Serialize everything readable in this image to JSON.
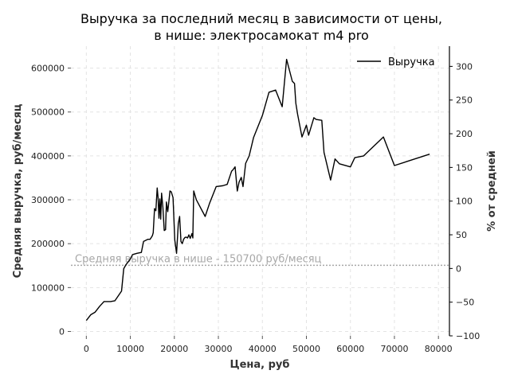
{
  "chart_data": {
    "type": "line",
    "title_line1": "Выручка за последний месяц в зависимости от цены,",
    "title_line2": "в нише: электросамокат m4 pro",
    "xlabel": "Цена, руб",
    "ylabel": "Средняя выручка, руб/месяц",
    "ylabel_right": "% от средней",
    "xlim": [
      -3500,
      82500
    ],
    "ylim": [
      -10000,
      650000
    ],
    "ylim_right": [
      -100,
      330
    ],
    "grid": true,
    "legend_position": "top-right",
    "x_ticks": [
      0,
      10000,
      20000,
      30000,
      40000,
      50000,
      60000,
      70000,
      80000
    ],
    "x_tick_labels": [
      "0",
      "10000",
      "20000",
      "30000",
      "40000",
      "50000",
      "60000",
      "70000",
      "80000"
    ],
    "y_ticks": [
      0,
      100000,
      200000,
      300000,
      400000,
      500000,
      600000
    ],
    "y_tick_labels": [
      "0",
      "100000",
      "200000",
      "300000",
      "400000",
      "500000",
      "600000"
    ],
    "y_right_ticks": [
      -100,
      -50,
      0,
      50,
      100,
      150,
      200,
      250,
      300
    ],
    "y_right_tick_labels": [
      "−100",
      "−50",
      "0",
      "50",
      "100",
      "150",
      "200",
      "250",
      "300"
    ],
    "reference_line": {
      "value": 150700,
      "label": "Средняя выручка в нише - 150700 руб/месяц",
      "color": "#a8a8a8"
    },
    "series": [
      {
        "name": "Выручка",
        "color": "#000000",
        "x": [
          0,
          1000,
          2000,
          3000,
          4000,
          5500,
          6500,
          8000,
          8500,
          9000,
          10000,
          10500,
          11500,
          12500,
          13000,
          14000,
          14500,
          15000,
          15200,
          15500,
          15800,
          16100,
          16300,
          16500,
          16700,
          16900,
          17100,
          17400,
          17700,
          18000,
          18200,
          18500,
          18800,
          19000,
          19300,
          19700,
          20100,
          20500,
          20900,
          21200,
          21500,
          21800,
          22100,
          22400,
          22700,
          23000,
          23300,
          23600,
          24000,
          24200,
          24400,
          24700,
          25000,
          27000,
          28000,
          29500,
          31000,
          32000,
          33000,
          33300,
          33800,
          34300,
          34700,
          35200,
          35600,
          36200,
          37000,
          38000,
          40000,
          41500,
          43000,
          44500,
          45500,
          46800,
          47300,
          47600,
          48000,
          49000,
          50000,
          50500,
          51700,
          52200,
          53500,
          54000,
          55500,
          56500,
          57500,
          60000,
          61000,
          63000,
          67500,
          70000,
          78000
        ],
        "y": [
          25000,
          38000,
          44000,
          57000,
          68000,
          68000,
          70000,
          92000,
          143000,
          152000,
          165000,
          175000,
          178000,
          180000,
          205000,
          210000,
          210000,
          218000,
          225000,
          280000,
          275000,
          327000,
          305000,
          258000,
          302000,
          256000,
          315000,
          282000,
          230000,
          232000,
          295000,
          273000,
          300000,
          320000,
          318000,
          305000,
          208000,
          178000,
          246000,
          262000,
          205000,
          200000,
          210000,
          214000,
          215000,
          213000,
          220000,
          212000,
          223000,
          213000,
          320000,
          310000,
          300000,
          262000,
          292000,
          330000,
          332000,
          335000,
          365000,
          368000,
          375000,
          320000,
          340000,
          351000,
          330000,
          383000,
          400000,
          442000,
          492000,
          545000,
          550000,
          512000,
          620000,
          570000,
          565000,
          520000,
          495000,
          443000,
          470000,
          447000,
          487000,
          483000,
          481000,
          408000,
          345000,
          393000,
          382000,
          375000,
          396000,
          400000,
          443000,
          378000,
          404000
        ]
      }
    ]
  }
}
